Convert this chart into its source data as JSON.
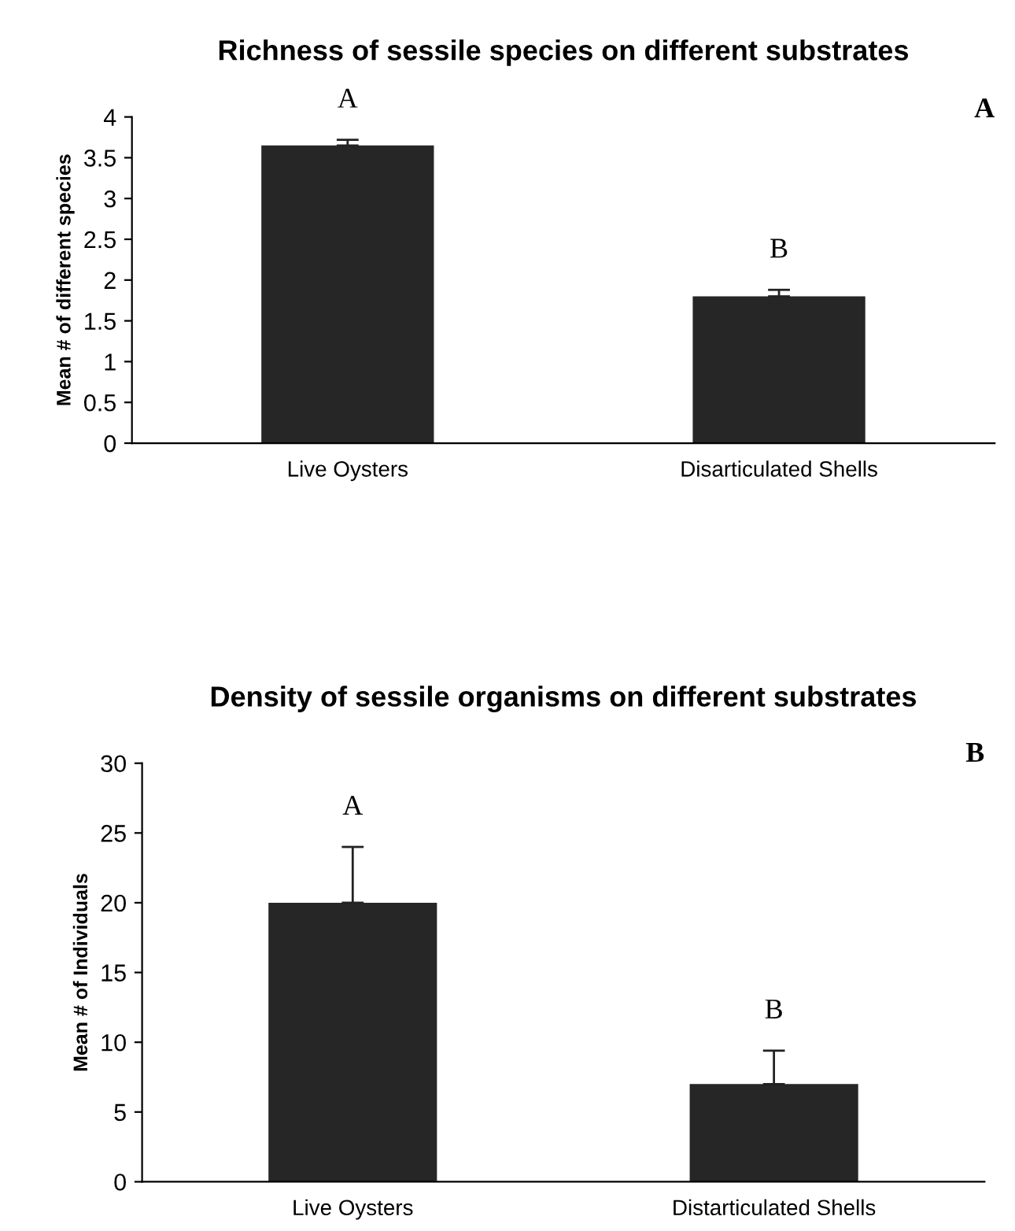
{
  "chart_data": [
    {
      "type": "bar",
      "title": "Richness of sessile species on different substrates",
      "ylabel": "Mean # of different species",
      "categories": [
        "Live Oysters",
        "Disarticulated Shells"
      ],
      "values": [
        3.65,
        1.8
      ],
      "errors": [
        [
          3.65,
          3.72
        ],
        [
          1.8,
          1.88
        ]
      ],
      "color": "#262626",
      "ylim": [
        0,
        4
      ],
      "yticks": [
        0,
        0.5,
        1,
        1.5,
        2,
        2.5,
        3,
        3.5,
        4
      ],
      "grid": false,
      "legend": false,
      "annotations": [
        "A",
        "B",
        "A"
      ]
    },
    {
      "type": "bar",
      "title": "Density of sessile organisms on different substrates",
      "ylabel": "Mean # of Individuals",
      "categories": [
        "Live Oysters",
        "Distarticulated Shells"
      ],
      "values": [
        20,
        7
      ],
      "errors": [
        [
          20,
          24
        ],
        [
          7,
          9.4
        ]
      ],
      "color": "#262626",
      "ylim": [
        0,
        30
      ],
      "yticks": [
        0,
        5,
        10,
        15,
        20,
        25,
        30
      ],
      "grid": false,
      "legend": false,
      "annotations": [
        "A",
        "B",
        "B"
      ]
    }
  ]
}
